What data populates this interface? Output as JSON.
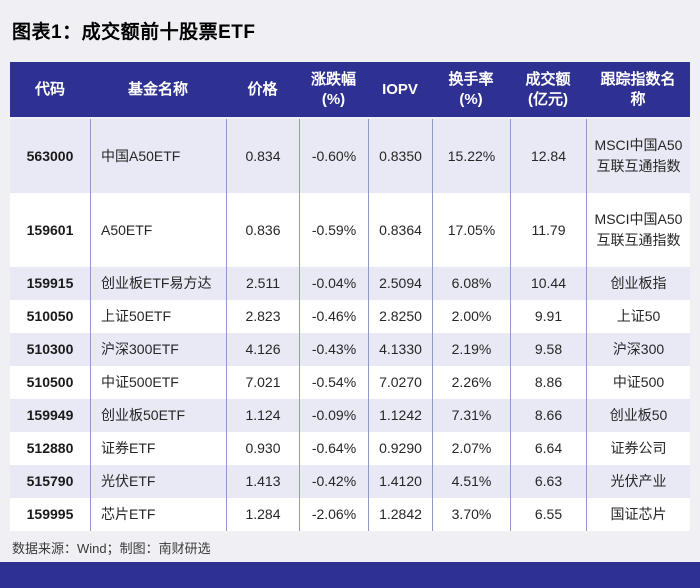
{
  "title": "图表1：成交额前十股票ETF",
  "header_display": [
    "代码",
    "基金名称",
    "价格",
    "涨跌幅\n(%)",
    "IOPV",
    "换手率\n(%)",
    "成交额\n(亿元)",
    "跟踪指数名\n称"
  ],
  "chart_data": {
    "type": "table",
    "title": "图表1：成交额前十股票ETF",
    "columns": [
      "代码",
      "基金名称",
      "价格",
      "涨跌幅(%)",
      "IOPV",
      "换手率(%)",
      "成交额(亿元)",
      "跟踪指数名称"
    ],
    "rows": [
      [
        "563000",
        "中国A50ETF",
        "0.834",
        "-0.60%",
        "0.8350",
        "15.22%",
        "12.84",
        "MSCI中国A50互联互通指数"
      ],
      [
        "159601",
        "A50ETF",
        "0.836",
        "-0.59%",
        "0.8364",
        "17.05%",
        "11.79",
        "MSCI中国A50互联互通指数"
      ],
      [
        "159915",
        "创业板ETF易方达",
        "2.511",
        "-0.04%",
        "2.5094",
        "6.08%",
        "10.44",
        "创业板指"
      ],
      [
        "510050",
        "上证50ETF",
        "2.823",
        "-0.46%",
        "2.8250",
        "2.00%",
        "9.91",
        "上证50"
      ],
      [
        "510300",
        "沪深300ETF",
        "4.126",
        "-0.43%",
        "4.1330",
        "2.19%",
        "9.58",
        "沪深300"
      ],
      [
        "510500",
        "中证500ETF",
        "7.021",
        "-0.54%",
        "7.0270",
        "2.26%",
        "8.86",
        "中证500"
      ],
      [
        "159949",
        "创业板50ETF",
        "1.124",
        "-0.09%",
        "1.1242",
        "7.31%",
        "8.66",
        "创业板50"
      ],
      [
        "512880",
        "证券ETF",
        "0.930",
        "-0.64%",
        "0.9290",
        "2.07%",
        "6.64",
        "证券公司"
      ],
      [
        "515790",
        "光伏ETF",
        "1.413",
        "-0.42%",
        "1.4120",
        "4.51%",
        "6.63",
        "光伏产业"
      ],
      [
        "159995",
        "芯片ETF",
        "1.284",
        "-2.06%",
        "1.2842",
        "3.70%",
        "6.55",
        "国证芯片"
      ]
    ],
    "source_note": "数据来源：Wind；制图：南财研选"
  },
  "footer": {
    "source": "数据来源：Wind；制图：南财研选"
  },
  "colors": {
    "header_navy": "#2E3192",
    "row_alt_lavender": "#E9E9F5",
    "row_white": "#FFFFFF",
    "page_background": "#F0F0F4",
    "column_separator": "#8E9ACC",
    "bottom_bar": "#2E3192"
  }
}
